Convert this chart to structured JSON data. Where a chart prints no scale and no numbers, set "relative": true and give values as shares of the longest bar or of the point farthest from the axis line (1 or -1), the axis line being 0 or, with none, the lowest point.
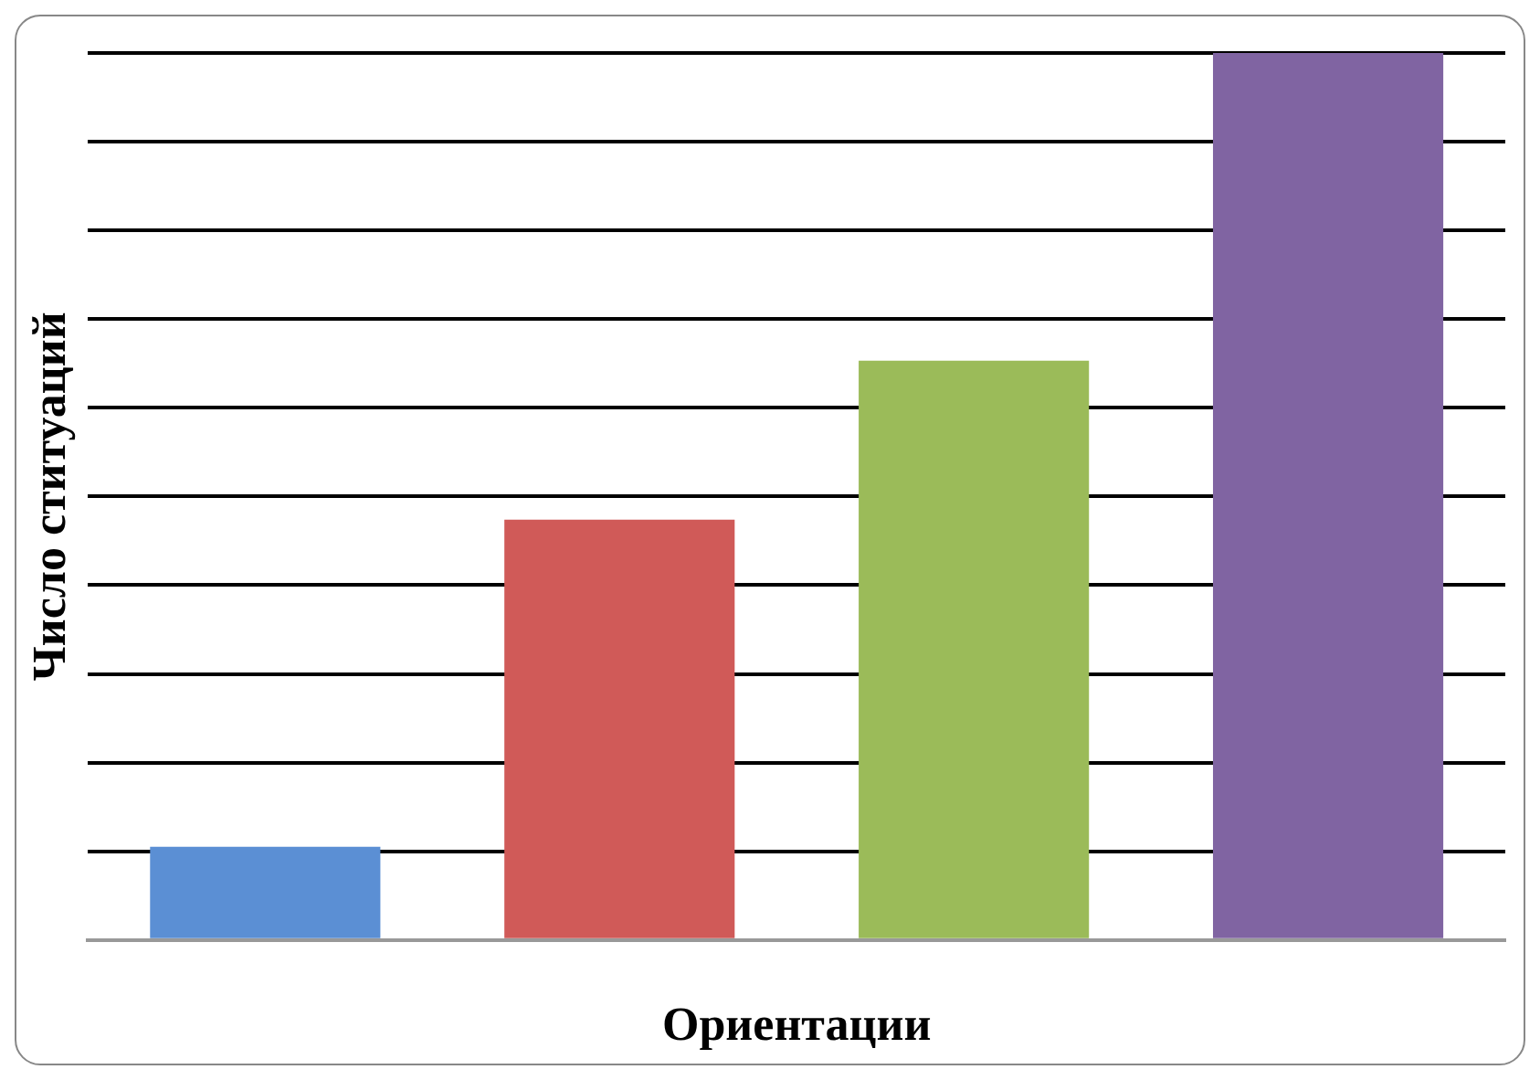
{
  "chart_data": {
    "type": "bar",
    "relative": true,
    "xlabel": "Ориентации",
    "ylabel": "Число ституаций",
    "categories": [
      null,
      null,
      null,
      null
    ],
    "values": [
      0.105,
      0.474,
      0.653,
      1
    ],
    "colors": [
      "#5b8fd4",
      "#d05a58",
      "#9bbb59",
      "#8064a2"
    ],
    "grid": "y",
    "legend": false
  }
}
